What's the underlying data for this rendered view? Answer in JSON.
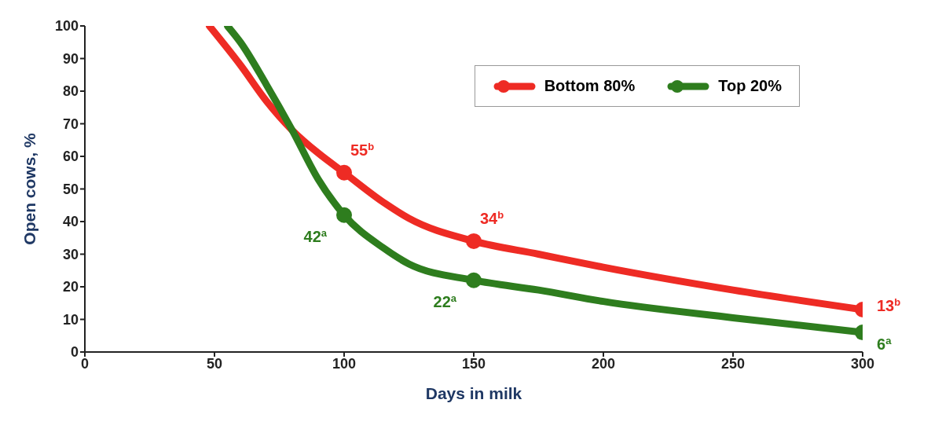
{
  "chart_data": {
    "type": "line",
    "xlabel": "Days in milk",
    "ylabel": "Open cows, %",
    "xlim": [
      0,
      300
    ],
    "xticks": [
      0,
      50,
      100,
      150,
      200,
      250,
      300
    ],
    "ylim": [
      0,
      100
    ],
    "yticks": [
      0,
      10,
      20,
      30,
      40,
      50,
      60,
      70,
      80,
      90,
      100
    ],
    "grid": false,
    "legend": "top right",
    "marker": "none",
    "line_style": "solid",
    "series": [
      {
        "name": "Bottom 80%",
        "color": "#ee2b24",
        "x": [
          48,
          60,
          70,
          80,
          90,
          100,
          115,
          125,
          150,
          175,
          200,
          250,
          300
        ],
        "values": [
          100,
          88,
          77,
          68,
          61,
          55,
          46,
          41,
          34,
          30,
          26,
          19,
          13
        ]
      },
      {
        "name": "Top 20%",
        "color": "#2e7d1e",
        "x": [
          55,
          60,
          70,
          80,
          90,
          100,
          115,
          125,
          150,
          175,
          200,
          250,
          300
        ],
        "values": [
          100,
          95,
          82,
          68,
          53,
          42,
          32,
          27,
          22,
          19,
          15.5,
          10.5,
          6
        ]
      },
      {
        "type": "scatter",
        "marker": "circle",
        "color": "#ee2b24",
        "x": [
          100,
          150,
          300
        ],
        "values": [
          55,
          34,
          13
        ]
      },
      {
        "type": "scatter",
        "marker": "circle",
        "color": "#2e7d1e",
        "x": [
          100,
          150,
          300
        ],
        "values": [
          42,
          22,
          6
        ]
      }
    ],
    "annotations": [
      {
        "text": "55$^{b}$",
        "x": 100,
        "y": 55
      },
      {
        "text": "34$^{b}$",
        "x": 150,
        "y": 34
      },
      {
        "text": "13$^{b}$",
        "x": 300,
        "y": 13
      },
      {
        "text": "42$^{a}$",
        "x": 100,
        "y": 42
      },
      {
        "text": "22$^{a}$",
        "x": 150,
        "y": 22
      },
      {
        "text": "6$^{a}$",
        "x": 300,
        "y": 6
      }
    ]
  }
}
